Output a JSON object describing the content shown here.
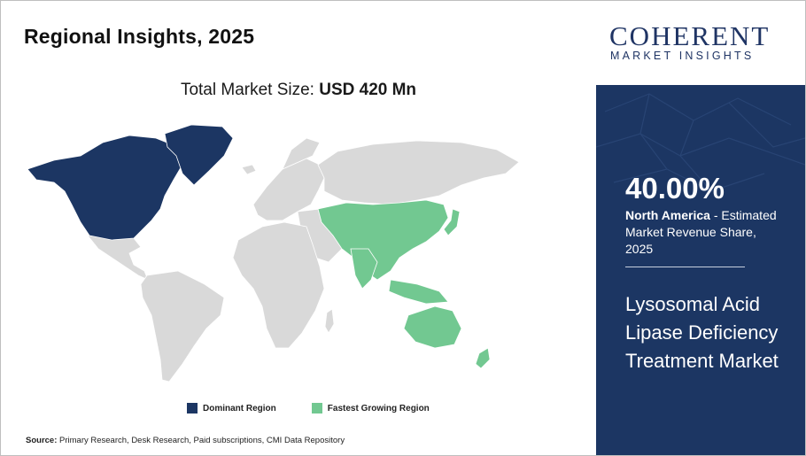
{
  "title": "Regional Insights, 2025",
  "market_size": {
    "label": "Total Market Size:",
    "value": "USD 420 Mn"
  },
  "legend": [
    {
      "label": "Dominant Region",
      "color": "#1c3663"
    },
    {
      "label": "Fastest Growing Region",
      "color": "#72c891"
    }
  ],
  "map_colors": {
    "other": "#d9d9d9",
    "border": "#ffffff"
  },
  "source": {
    "label": "Source:",
    "text": "Primary Research, Desk Research, Paid subscriptions, CMI Data Repository"
  },
  "logo": {
    "main": "COHERENT",
    "sub": "MARKET INSIGHTS"
  },
  "panel": {
    "share": "40.00%",
    "region": "North America",
    "share_text": " - Estimated Market Revenue Share, 2025",
    "market_name": "Lysosomal Acid Lipase Deficiency Treatment Market"
  }
}
